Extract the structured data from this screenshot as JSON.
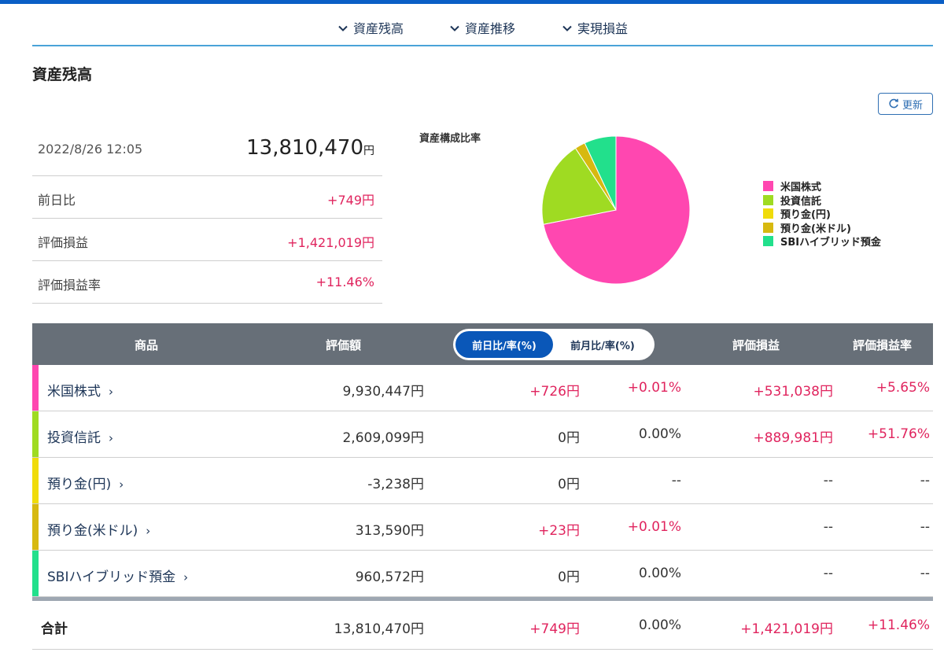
{
  "nav": {
    "items": [
      "資産残高",
      "資産推移",
      "実現損益"
    ]
  },
  "section": {
    "title": "資産残高"
  },
  "refresh": {
    "label": "更新"
  },
  "summary": {
    "datetime": "2022/8/26 12:05",
    "total_amount": "13,810,470",
    "total_unit": "円",
    "rows": [
      {
        "label": "前日比",
        "value": "+749円"
      },
      {
        "label": "評価損益",
        "value": "+1,421,019円"
      },
      {
        "label": "評価損益率",
        "value": "+11.46%"
      }
    ]
  },
  "chart_data": {
    "type": "pie",
    "title": "資産構成比率",
    "slices": [
      {
        "name": "米国株式",
        "value": 9930447,
        "color": "#ff47b0"
      },
      {
        "name": "投資信託",
        "value": 2609099,
        "color": "#9fdb22"
      },
      {
        "name": "預り金(円)",
        "value": 0,
        "color": "#f0dc0a"
      },
      {
        "name": "預り金(米ドル)",
        "value": 313590,
        "color": "#d7b910"
      },
      {
        "name": "SBIハイブリッド預金",
        "value": 960572,
        "color": "#22e08c"
      }
    ],
    "legend_position": "right"
  },
  "table": {
    "headers": {
      "product": "商品",
      "valuation": "評価額",
      "toggle_active": "前日比/率(%)",
      "toggle_inactive": "前月比/率(%)",
      "pl": "評価損益",
      "pl_rate": "評価損益率"
    },
    "rows": [
      {
        "name": "米国株式",
        "valuation": "9,930,447円",
        "diff": "+726円",
        "diff_rate": "+0.01%",
        "pl": "+531,038円",
        "pl_rate": "+5.65%",
        "color": "#ff47b0"
      },
      {
        "name": "投資信託",
        "valuation": "2,609,099円",
        "diff": "0円",
        "diff_rate": "0.00%",
        "pl": "+889,981円",
        "pl_rate": "+51.76%",
        "color": "#9fdb22"
      },
      {
        "name": "預り金(円)",
        "valuation": "-3,238円",
        "diff": "0円",
        "diff_rate": "--",
        "pl": "--",
        "pl_rate": "--",
        "color": "#f0dc0a"
      },
      {
        "name": "預り金(米ドル)",
        "valuation": "313,590円",
        "diff": "+23円",
        "diff_rate": "+0.01%",
        "pl": "--",
        "pl_rate": "--",
        "color": "#d7b910"
      },
      {
        "name": "SBIハイブリッド預金",
        "valuation": "960,572円",
        "diff": "0円",
        "diff_rate": "0.00%",
        "pl": "--",
        "pl_rate": "--",
        "color": "#22e08c"
      }
    ],
    "total": {
      "label": "合計",
      "valuation": "13,810,470円",
      "diff": "+749円",
      "diff_rate": "0.00%",
      "pl": "+1,421,019円",
      "pl_rate": "+11.46%"
    }
  },
  "colors": {
    "accent": "#0a5fc6",
    "header_bg": "#676f78",
    "positive": "#e0245e"
  }
}
